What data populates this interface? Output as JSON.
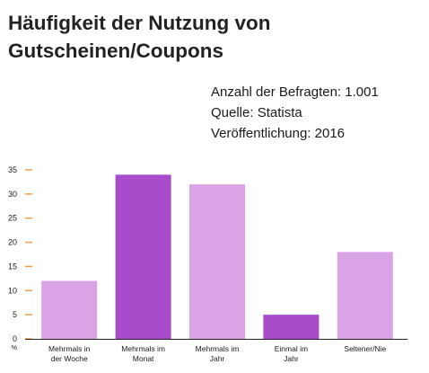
{
  "header": {
    "title_line1": "Häufigkeit der Nutzung von",
    "title_line2": "Gutscheinen/Coupons"
  },
  "meta": {
    "respondents": "Anzahl der Befragten: 1.001",
    "source": "Quelle: Statista",
    "published": "Veröffentlichung: 2016"
  },
  "chart_data": {
    "type": "bar",
    "title": "Häufigkeit der Nutzung von Gutscheinen/Coupons",
    "xlabel": "",
    "ylabel": "%",
    "ylim": [
      0,
      35
    ],
    "yticks": [
      0,
      5,
      10,
      15,
      20,
      25,
      30,
      35
    ],
    "grid": false,
    "legend": "none",
    "categories": [
      [
        "Mehrmals in",
        "der Woche"
      ],
      [
        "Mehrmals im",
        "Monat"
      ],
      [
        "Mehrmals im",
        "Jahr"
      ],
      [
        "Einmal im",
        "Jahr"
      ],
      [
        "Seltener/Nie"
      ]
    ],
    "values": [
      12,
      34,
      32,
      5,
      18
    ],
    "colors": [
      "#d9a3e6",
      "#a84ccc",
      "#d9a3e6",
      "#a84ccc",
      "#d9a3e6"
    ],
    "tick_color": "#f0a050",
    "axis_color": "#222222"
  }
}
